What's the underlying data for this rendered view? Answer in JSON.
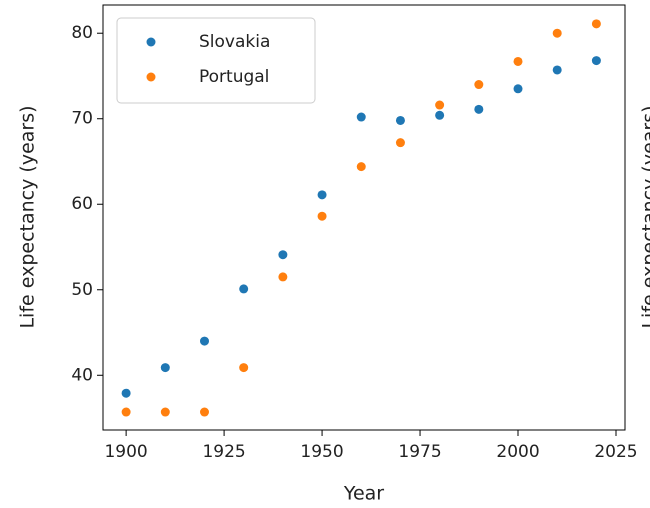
{
  "chart_data": [
    {
      "type": "scatter",
      "xlabel": "Year",
      "ylabel": "Life expectancy (years)",
      "xlim": [
        1894.1,
        2027.3
      ],
      "ylim": [
        33.6,
        83.3
      ],
      "xticks": [
        1900,
        1925,
        1950,
        1975,
        2000,
        2025
      ],
      "yticks": [
        40,
        50,
        60,
        70,
        80
      ],
      "legend": "upper left",
      "series": [
        {
          "name": "Slovakia",
          "color": "#1f77b4",
          "x": [
            1900,
            1910,
            1920,
            1930,
            1940,
            1950,
            1960,
            1970,
            1980,
            1990,
            2000,
            2010,
            2020
          ],
          "values": [
            37.9,
            40.9,
            44.0,
            50.1,
            54.1,
            61.1,
            70.2,
            69.8,
            70.4,
            71.1,
            73.5,
            75.7,
            76.8
          ]
        },
        {
          "name": "Portugal",
          "color": "#ff7f0e",
          "x": [
            1900,
            1910,
            1920,
            1930,
            1940,
            1950,
            1960,
            1970,
            1980,
            1990,
            2000,
            2010,
            2020
          ],
          "values": [
            35.7,
            35.7,
            35.7,
            40.9,
            51.5,
            58.6,
            64.4,
            67.2,
            71.6,
            74.0,
            76.7,
            80.0,
            81.1
          ]
        }
      ]
    },
    {
      "type": "scatter",
      "ylabel": "Life expectancy (years)"
    }
  ]
}
